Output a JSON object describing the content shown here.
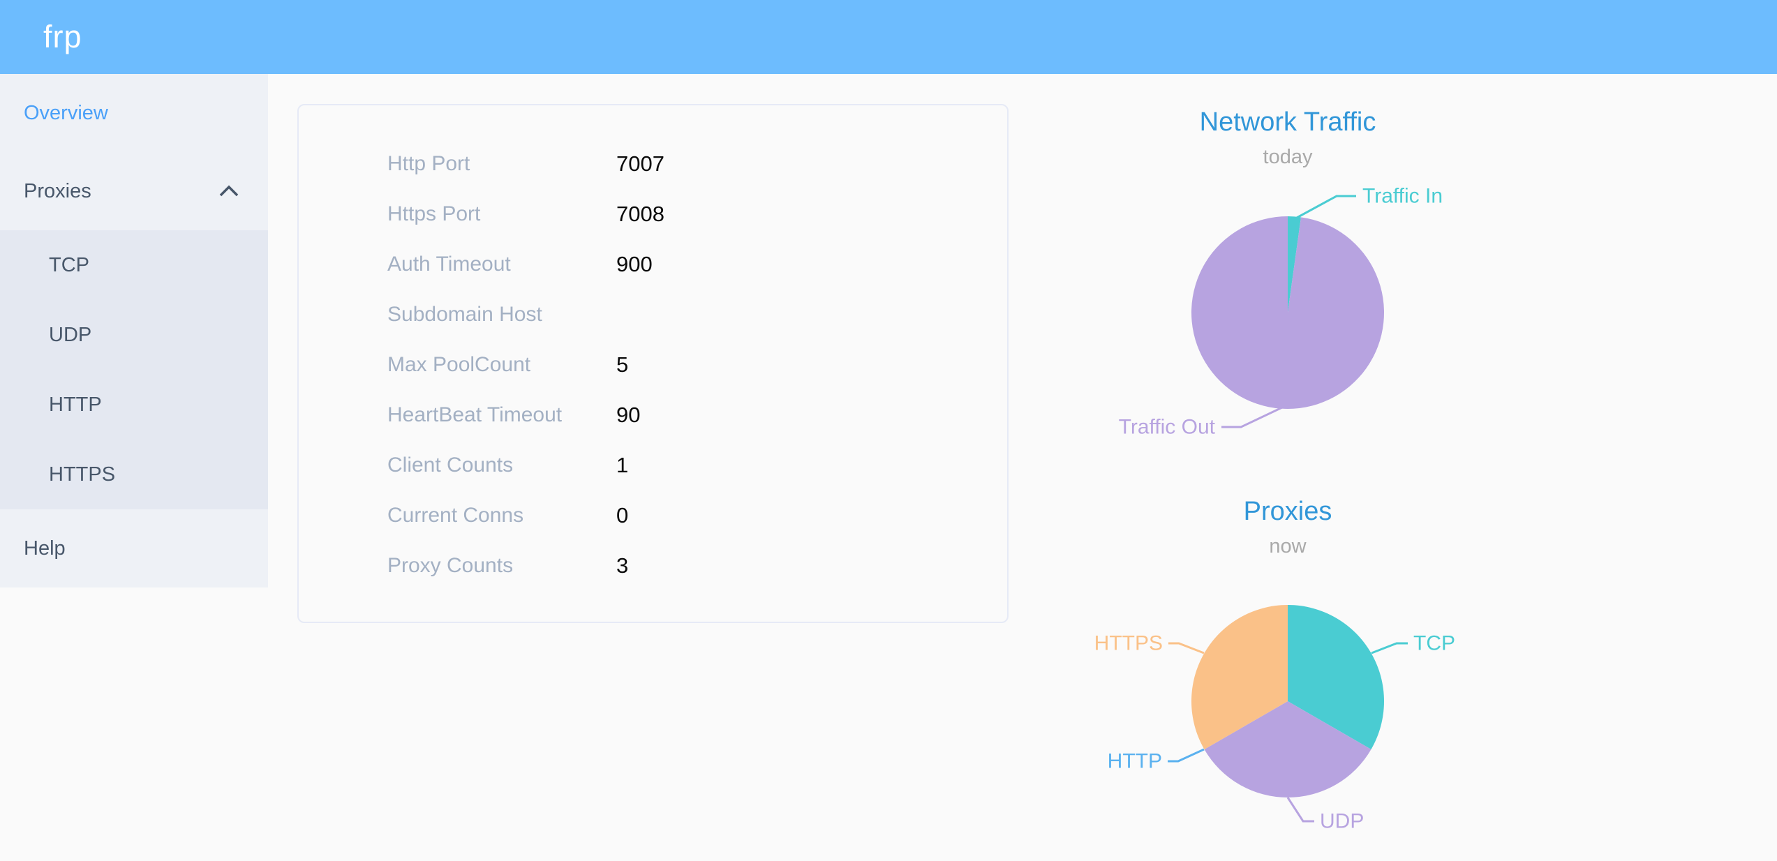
{
  "header": {
    "logo": "frp"
  },
  "theme": {
    "header_background": "#6dbcfe",
    "sidebar_background": "#eef1f6",
    "submenu_background": "#e4e8f1",
    "menu_text_color": "#48576a",
    "active_item_color": "#4aa0f8",
    "chart_title_color": "#3196d8",
    "chart_subtitle_color": "#a9a9a9",
    "card_label_color": "#a3b0c3",
    "card_value_color": "#0a0a0a"
  },
  "sidebar": {
    "items": [
      {
        "label": "Overview",
        "active": true
      },
      {
        "label": "Proxies",
        "expanded": true,
        "children": [
          "TCP",
          "UDP",
          "HTTP",
          "HTTPS"
        ]
      },
      {
        "label": "Help"
      }
    ]
  },
  "server_info": {
    "rows": [
      {
        "label": "Http Port",
        "value": "7007"
      },
      {
        "label": "Https Port",
        "value": "7008"
      },
      {
        "label": "Auth Timeout",
        "value": "900"
      },
      {
        "label": "Subdomain Host",
        "value": ""
      },
      {
        "label": "Max PoolCount",
        "value": "5"
      },
      {
        "label": "HeartBeat Timeout",
        "value": "90"
      },
      {
        "label": "Client Counts",
        "value": "1"
      },
      {
        "label": "Current Conns",
        "value": "0"
      },
      {
        "label": "Proxy Counts",
        "value": "3"
      }
    ]
  },
  "chart_data": [
    {
      "type": "pie",
      "title": "Network Traffic",
      "subtitle": "today",
      "labels_position": "outside",
      "legend": "none",
      "series": [
        {
          "name": "Traffic In",
          "value": 2.2,
          "color": "#4accd2"
        },
        {
          "name": "Traffic Out",
          "value": 97.8,
          "color": "#b7a3e0"
        }
      ],
      "value_unit": "percent-of-pie"
    },
    {
      "type": "pie",
      "title": "Proxies",
      "subtitle": "now",
      "labels_position": "outside",
      "legend": "none",
      "series": [
        {
          "name": "TCP",
          "value": 1,
          "color": "#4accd2"
        },
        {
          "name": "UDP",
          "value": 1,
          "color": "#b7a3e0"
        },
        {
          "name": "HTTP",
          "value": 0,
          "color": "#5ab1ef"
        },
        {
          "name": "HTTPS",
          "value": 1,
          "color": "#fac188"
        }
      ],
      "value_unit": "proxy-count"
    }
  ]
}
